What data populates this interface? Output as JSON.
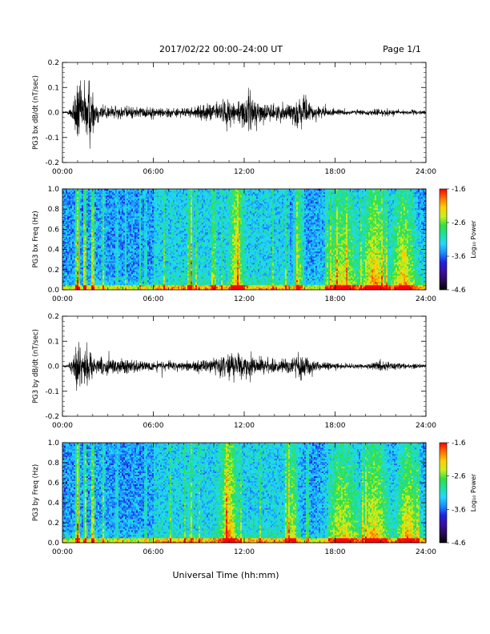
{
  "header": {
    "date_range": "2017/02/22  00:00–24:00 UT",
    "page": "Page 1/1"
  },
  "footer": {
    "xlabel": "Universal Time (hh:mm)"
  },
  "colors": {
    "trace": "#000000",
    "colormap": [
      "#000000",
      "#2a0a55",
      "#3b0fa0",
      "#2020e0",
      "#1a8cff",
      "#22d8ff",
      "#20e0a0",
      "#30e040",
      "#c8f020",
      "#ffd000",
      "#ff7000",
      "#ff0000"
    ]
  },
  "chart_data": [
    {
      "type": "line",
      "ylabel": "PG3 bx dB/dt (nT/sec)",
      "xlim": [
        0,
        24
      ],
      "ylim": [
        -0.2,
        0.2
      ],
      "x_ticks": [
        "00:00",
        "06:00",
        "12:00",
        "18:00",
        "24:00"
      ],
      "y_ticks": [
        "-0.2",
        "-0.1",
        "0.0",
        "0.1",
        "0.2"
      ],
      "envelope": [
        {
          "t": 0.0,
          "a": 0.004
        },
        {
          "t": 0.4,
          "a": 0.01
        },
        {
          "t": 0.7,
          "a": 0.06
        },
        {
          "t": 1.0,
          "a": 0.19
        },
        {
          "t": 1.3,
          "a": 0.11
        },
        {
          "t": 1.7,
          "a": 0.2
        },
        {
          "t": 2.2,
          "a": 0.06
        },
        {
          "t": 3.0,
          "a": 0.035
        },
        {
          "t": 4.0,
          "a": 0.03
        },
        {
          "t": 5.0,
          "a": 0.03
        },
        {
          "t": 6.0,
          "a": 0.025
        },
        {
          "t": 7.0,
          "a": 0.025
        },
        {
          "t": 8.0,
          "a": 0.02
        },
        {
          "t": 9.0,
          "a": 0.03
        },
        {
          "t": 10.0,
          "a": 0.05
        },
        {
          "t": 11.0,
          "a": 0.07
        },
        {
          "t": 12.0,
          "a": 0.06
        },
        {
          "t": 12.3,
          "a": 0.12
        },
        {
          "t": 13.0,
          "a": 0.05
        },
        {
          "t": 14.0,
          "a": 0.04
        },
        {
          "t": 15.0,
          "a": 0.05
        },
        {
          "t": 15.8,
          "a": 0.08
        },
        {
          "t": 16.5,
          "a": 0.04
        },
        {
          "t": 17.0,
          "a": 0.03
        },
        {
          "t": 18.0,
          "a": 0.015
        },
        {
          "t": 20.0,
          "a": 0.012
        },
        {
          "t": 21.0,
          "a": 0.02
        },
        {
          "t": 22.0,
          "a": 0.015
        },
        {
          "t": 23.0,
          "a": 0.012
        },
        {
          "t": 24.0,
          "a": 0.01
        }
      ]
    },
    {
      "type": "heatmap",
      "ylabel": "PG3 bx Freq (Hz)",
      "colorbar_label": "Log₁₀ Power",
      "xlim": [
        0,
        24
      ],
      "ylim": [
        0.0,
        1.0
      ],
      "clim": [
        -4.6,
        -1.6
      ],
      "x_ticks": [
        "00:00",
        "06:00",
        "12:00",
        "18:00",
        "24:00"
      ],
      "y_ticks": [
        "0.0",
        "0.2",
        "0.4",
        "0.6",
        "0.8",
        "1.0"
      ],
      "cbar_ticks": [
        "-1.6",
        "-2.6",
        "-3.6",
        "-4.6"
      ],
      "bursts": [
        {
          "t": 1.0,
          "w": 0.12,
          "p": 1.0
        },
        {
          "t": 1.5,
          "w": 0.08,
          "p": 0.75
        },
        {
          "t": 2.0,
          "w": 0.1,
          "p": 0.85
        },
        {
          "t": 2.7,
          "w": 0.08,
          "p": 0.55
        },
        {
          "t": 3.6,
          "w": 0.06,
          "p": 0.45
        },
        {
          "t": 5.5,
          "w": 0.06,
          "p": 0.45
        },
        {
          "t": 8.5,
          "w": 0.1,
          "p": 0.5
        },
        {
          "t": 11.5,
          "w": 0.4,
          "p": 0.6
        },
        {
          "t": 15.6,
          "w": 0.3,
          "p": 0.55
        },
        {
          "t": 18.5,
          "w": 1.0,
          "p": 0.5
        },
        {
          "t": 20.6,
          "w": 0.8,
          "p": 0.65
        },
        {
          "t": 22.5,
          "w": 0.7,
          "p": 0.6
        }
      ]
    },
    {
      "type": "line",
      "ylabel": "PG3 by dB/dt (nT/sec)",
      "xlim": [
        0,
        24
      ],
      "ylim": [
        -0.2,
        0.2
      ],
      "x_ticks": [
        "00:00",
        "06:00",
        "12:00",
        "18:00",
        "24:00"
      ],
      "y_ticks": [
        "-0.2",
        "-0.1",
        "0.0",
        "0.1",
        "0.2"
      ],
      "envelope": [
        {
          "t": 0.0,
          "a": 0.004
        },
        {
          "t": 0.4,
          "a": 0.01
        },
        {
          "t": 0.7,
          "a": 0.05
        },
        {
          "t": 1.0,
          "a": 0.13
        },
        {
          "t": 1.3,
          "a": 0.09
        },
        {
          "t": 1.7,
          "a": 0.12
        },
        {
          "t": 2.2,
          "a": 0.05
        },
        {
          "t": 3.0,
          "a": 0.04
        },
        {
          "t": 4.0,
          "a": 0.035
        },
        {
          "t": 5.0,
          "a": 0.03
        },
        {
          "t": 6.0,
          "a": 0.025
        },
        {
          "t": 7.0,
          "a": 0.025
        },
        {
          "t": 8.0,
          "a": 0.02
        },
        {
          "t": 9.0,
          "a": 0.03
        },
        {
          "t": 10.0,
          "a": 0.04
        },
        {
          "t": 11.0,
          "a": 0.06
        },
        {
          "t": 11.7,
          "a": 0.08
        },
        {
          "t": 12.5,
          "a": 0.06
        },
        {
          "t": 13.0,
          "a": 0.04
        },
        {
          "t": 14.0,
          "a": 0.035
        },
        {
          "t": 15.0,
          "a": 0.04
        },
        {
          "t": 15.8,
          "a": 0.07
        },
        {
          "t": 16.5,
          "a": 0.035
        },
        {
          "t": 17.0,
          "a": 0.025
        },
        {
          "t": 18.0,
          "a": 0.015
        },
        {
          "t": 20.0,
          "a": 0.012
        },
        {
          "t": 21.0,
          "a": 0.03
        },
        {
          "t": 22.0,
          "a": 0.015
        },
        {
          "t": 23.0,
          "a": 0.012
        },
        {
          "t": 24.0,
          "a": 0.01
        }
      ]
    },
    {
      "type": "heatmap",
      "ylabel": "PG3 by Freq (Hz)",
      "colorbar_label": "Log₁₀ Power",
      "xlim": [
        0,
        24
      ],
      "ylim": [
        0.0,
        1.0
      ],
      "clim": [
        -4.6,
        -1.6
      ],
      "x_ticks": [
        "00:00",
        "06:00",
        "12:00",
        "18:00",
        "24:00"
      ],
      "y_ticks": [
        "0.0",
        "0.2",
        "0.4",
        "0.6",
        "0.8",
        "1.0"
      ],
      "cbar_ticks": [
        "-1.6",
        "-2.6",
        "-3.6",
        "-4.6"
      ],
      "bursts": [
        {
          "t": 1.0,
          "w": 0.12,
          "p": 1.0
        },
        {
          "t": 1.5,
          "w": 0.08,
          "p": 0.8
        },
        {
          "t": 2.0,
          "w": 0.1,
          "p": 0.85
        },
        {
          "t": 2.7,
          "w": 0.08,
          "p": 0.55
        },
        {
          "t": 3.6,
          "w": 0.06,
          "p": 0.45
        },
        {
          "t": 5.5,
          "w": 0.06,
          "p": 0.5
        },
        {
          "t": 8.5,
          "w": 0.1,
          "p": 0.5
        },
        {
          "t": 11.0,
          "w": 0.5,
          "p": 0.65
        },
        {
          "t": 15.2,
          "w": 0.4,
          "p": 0.6
        },
        {
          "t": 18.5,
          "w": 1.0,
          "p": 0.5
        },
        {
          "t": 20.6,
          "w": 0.8,
          "p": 0.6
        },
        {
          "t": 22.8,
          "w": 0.6,
          "p": 0.6
        }
      ]
    }
  ]
}
